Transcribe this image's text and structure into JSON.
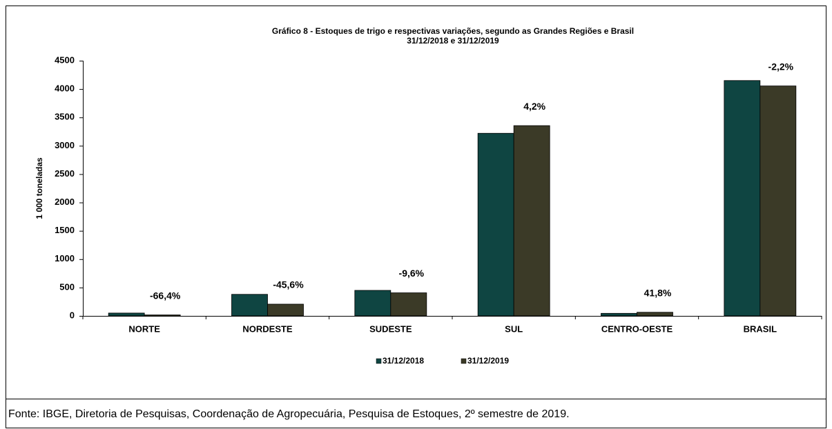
{
  "chart_data": {
    "type": "bar",
    "title": "Gráfico 8 - Estoques de trigo e respectivas  variações,  segundo as Grandes Regiões e Brasil",
    "subtitle": "31/12/2018  e 31/12/2019",
    "y_label": "1 000 toneladas",
    "categories": [
      "NORTE",
      "NORDESTE",
      "SUDESTE",
      "SUL",
      "CENTRO-OESTE",
      "BRASIL"
    ],
    "series": [
      {
        "name": "31/12/2018",
        "color": "#0f4542",
        "values": [
          50,
          380,
          450,
          3220,
          45,
          4150
        ]
      },
      {
        "name": "31/12/2019",
        "color": "#3b3a27",
        "values": [
          17,
          207,
          407,
          3355,
          64,
          4055
        ]
      }
    ],
    "variation_labels": [
      "-66,4%",
      "-45,6%",
      "-9,6%",
      "4,2%",
      "41,8%",
      "-2,2%"
    ],
    "ylim": [
      0,
      4500
    ],
    "yticks": [
      0,
      500,
      1000,
      1500,
      2000,
      2500,
      3000,
      3500,
      4000,
      4500
    ],
    "grid": false,
    "legend": "bottom"
  },
  "footer": "Fonte: IBGE, Diretoria de Pesquisas, Coordenação de Agropecuária, Pesquisa de Estoques, 2º semestre de 2019."
}
